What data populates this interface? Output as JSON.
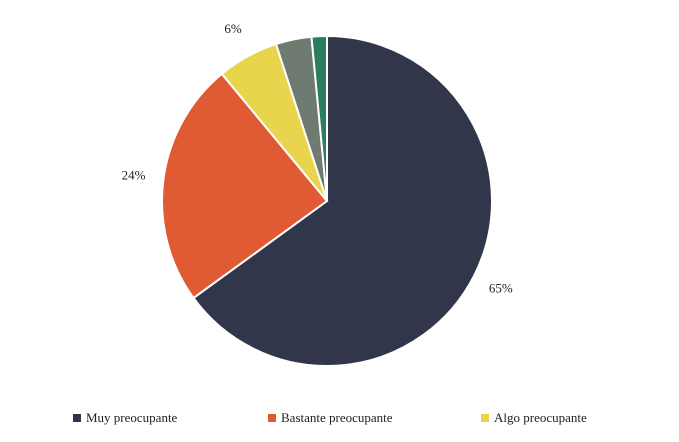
{
  "chart_data": {
    "type": "pie",
    "categories": [
      "Muy preocupante",
      "Bastante preocupante",
      "Algo preocupante",
      null,
      null
    ],
    "values": [
      65,
      24,
      6,
      3.5,
      1.5
    ],
    "value_labels": [
      "65%",
      "24%",
      "6%",
      null,
      null
    ],
    "colors": [
      "#31364b",
      "#e05a33",
      "#e8d44d",
      "#6f7b70",
      "#2a7d5f"
    ],
    "legend": "bottom"
  }
}
